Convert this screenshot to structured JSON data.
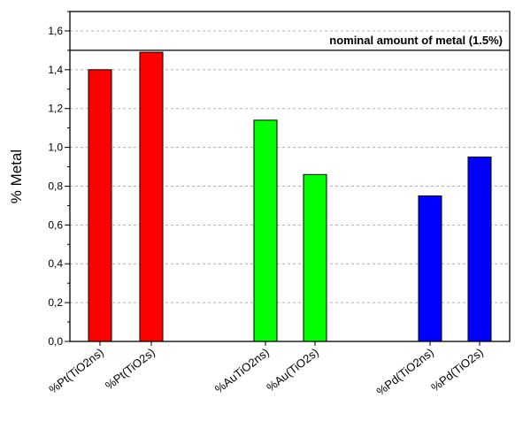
{
  "chart_data": {
    "type": "bar",
    "ylabel": "% Metal",
    "xlabel": "",
    "ylim": [
      0,
      1.7
    ],
    "yticks": [
      "0,0",
      "0,2",
      "0,4",
      "0,6",
      "0,8",
      "1,0",
      "1,2",
      "1,4",
      "1,6"
    ],
    "ytick_values": [
      0,
      0.2,
      0.4,
      0.6,
      0.8,
      1.0,
      1.2,
      1.4,
      1.6
    ],
    "grid": "horizontal dashed",
    "categories": [
      "%Pt(TiO2ns)",
      "%Pt(TiO2s)",
      "%AuTiO2ns)",
      "%Au(TiO2s)",
      "%Pd(TiO2ns)",
      "%Pd(TiO2s)"
    ],
    "values": [
      1.4,
      1.49,
      1.14,
      0.86,
      0.75,
      0.95
    ],
    "colors": [
      "#ff0000",
      "#ff0000",
      "#00ff00",
      "#00ff00",
      "#0000ff",
      "#0000ff"
    ],
    "reference_line": {
      "value": 1.5,
      "label": "nominal amount of metal (1.5%)"
    }
  }
}
